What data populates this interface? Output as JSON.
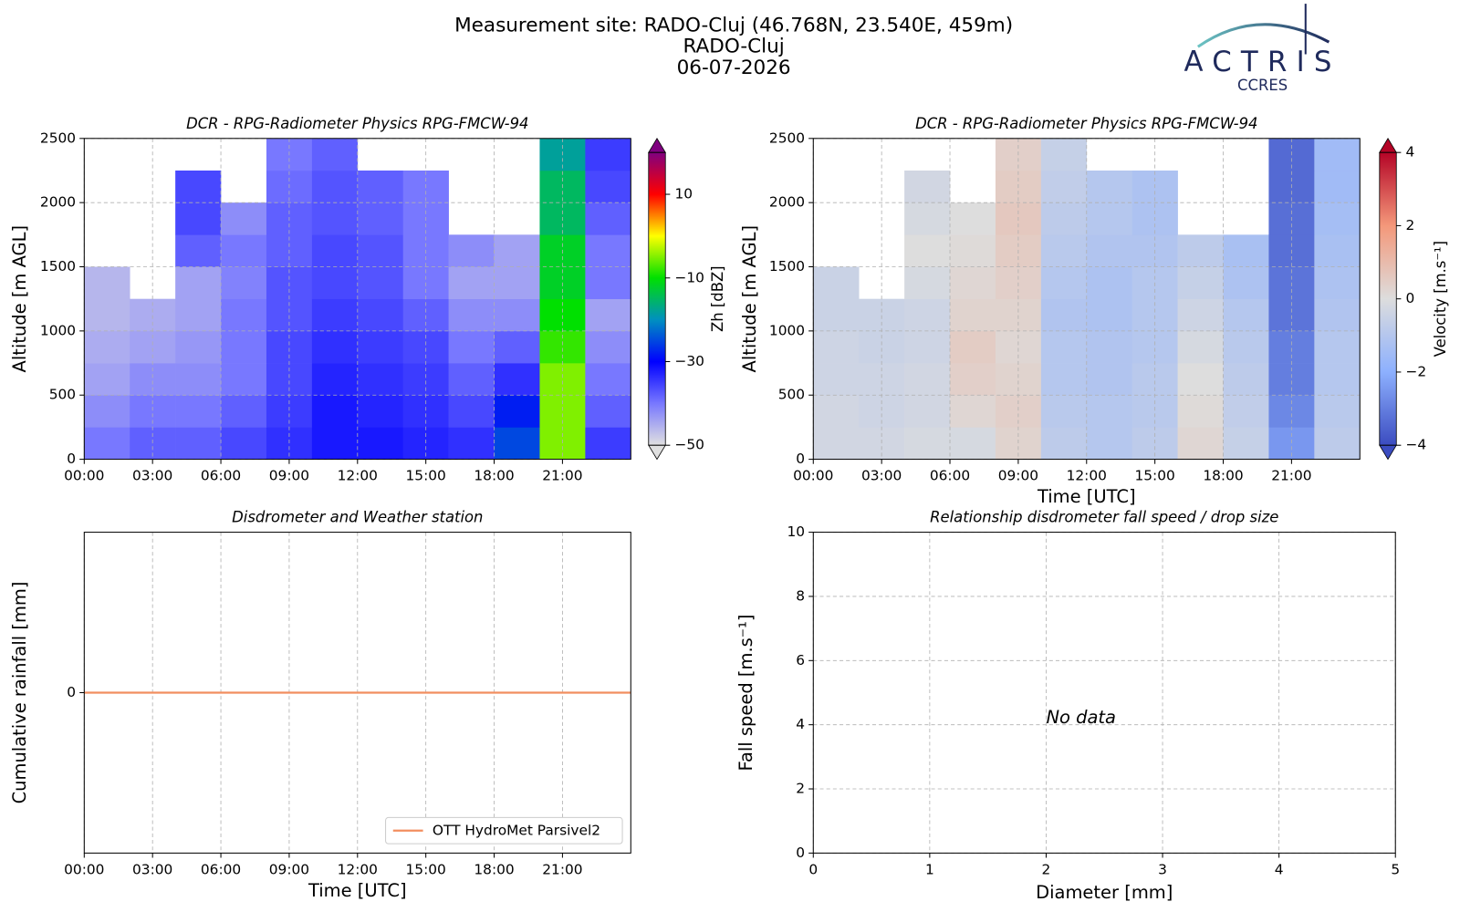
{
  "header": {
    "title_lines": [
      "Measurement site: RADO-Cluj (46.768N, 23.540E, 459m)",
      "RADO-Cluj",
      "06-07-2026"
    ],
    "logo": {
      "name": "ACTRIS",
      "subtitle": "CCRES"
    }
  },
  "chart_data": [
    {
      "type": "heatmap",
      "title": "DCR - RPG-Radiometer Physics RPG-FMCW-94",
      "ylabel": "Altitude [m AGL]",
      "x": [
        0,
        2,
        4,
        6,
        8,
        10,
        12,
        14,
        16,
        18,
        20,
        22,
        24
      ],
      "y": [
        0,
        250,
        500,
        750,
        1000,
        1250,
        1500,
        1750,
        2000,
        2250,
        2500
      ],
      "z": [
        [
          -40,
          -38,
          -38,
          -36,
          -34,
          -32,
          -32,
          -33,
          -34,
          -25,
          -5,
          -35
        ],
        [
          -42,
          -40,
          -40,
          -38,
          -35,
          -32,
          -33,
          -34,
          -36,
          -28,
          -5,
          -38
        ],
        [
          -44,
          -42,
          -42,
          -40,
          -36,
          -33,
          -34,
          -35,
          -38,
          -34,
          -5,
          -40
        ],
        [
          -45,
          -44,
          -43,
          -40,
          -36,
          -34,
          -35,
          -36,
          -40,
          -38,
          -8,
          -42
        ],
        [
          -46,
          -45,
          -44,
          -40,
          -37,
          -35,
          -36,
          -38,
          -42,
          -42,
          -10,
          -44
        ],
        [
          -46,
          null,
          -44,
          -41,
          -37,
          -36,
          -37,
          -40,
          -44,
          -44,
          -12,
          -40
        ],
        [
          null,
          null,
          -38,
          -40,
          -38,
          -36,
          -37,
          -40,
          -42,
          -44,
          -12,
          -40
        ],
        [
          null,
          null,
          -36,
          -42,
          -38,
          -37,
          -38,
          -40,
          null,
          null,
          -15,
          -38
        ],
        [
          null,
          null,
          -36,
          null,
          -39,
          -37,
          -38,
          -40,
          null,
          null,
          -15,
          -36
        ],
        [
          null,
          null,
          null,
          null,
          -40,
          -38,
          null,
          null,
          null,
          null,
          -18,
          -35
        ]
      ],
      "xlim": [
        0,
        24
      ],
      "xticks": [
        {
          "value": 0,
          "label": "00:00"
        },
        {
          "value": 3,
          "label": "03:00"
        },
        {
          "value": 6,
          "label": "06:00"
        },
        {
          "value": 9,
          "label": "09:00"
        },
        {
          "value": 12,
          "label": "12:00"
        },
        {
          "value": 15,
          "label": "15:00"
        },
        {
          "value": 18,
          "label": "18:00"
        },
        {
          "value": 21,
          "label": "21:00"
        }
      ],
      "ylim": [
        0,
        2500
      ],
      "yticks": [
        0,
        500,
        1000,
        1500,
        2000,
        2500
      ],
      "grid": true,
      "colorbar_label": "Zh [dBZ]",
      "clim": [
        -50,
        20
      ],
      "cticks": [
        {
          "value": -50,
          "label": "−50"
        },
        {
          "value": -30,
          "label": "−30"
        },
        {
          "value": -10,
          "label": "−10"
        },
        10
      ],
      "colors": [
        "#e0e0e0",
        "#7878ff",
        "#0000ff",
        "#0090c0",
        "#00e000",
        "#ffff00",
        "#ff0000",
        "#800080"
      ],
      "extend": "both"
    },
    {
      "type": "heatmap",
      "title": "DCR - RPG-Radiometer Physics RPG-FMCW-94",
      "ylabel": "Altitude [m AGL]",
      "xlabel": "Time [UTC]",
      "x": [
        0,
        2,
        4,
        6,
        8,
        10,
        12,
        14,
        16,
        18,
        20,
        22,
        24
      ],
      "y": [
        0,
        250,
        500,
        750,
        1000,
        1250,
        1500,
        1750,
        2000,
        2250,
        2500
      ],
      "z": [
        [
          -0.3,
          -0.3,
          -0.2,
          -0.2,
          0.3,
          -0.8,
          -1,
          -0.8,
          0.2,
          -0.6,
          -2.5,
          -0.8
        ],
        [
          -0.3,
          -0.4,
          -0.3,
          0.2,
          0.4,
          -0.9,
          -1,
          -0.9,
          0.1,
          -0.7,
          -2.8,
          -0.9
        ],
        [
          -0.4,
          -0.4,
          -0.3,
          0.4,
          0.3,
          -1,
          -1.1,
          -0.9,
          0,
          -0.8,
          -3,
          -1
        ],
        [
          -0.4,
          -0.5,
          -0.4,
          0.5,
          0.2,
          -1,
          -1.1,
          -1,
          -0.2,
          -0.9,
          -3,
          -1
        ],
        [
          -0.5,
          -0.5,
          -0.4,
          0.3,
          0.3,
          -1.1,
          -1.2,
          -1,
          -0.4,
          -1,
          -3.2,
          -1.1
        ],
        [
          -0.5,
          null,
          -0.2,
          0.2,
          0.4,
          -1,
          -1.2,
          -1,
          -0.6,
          -1.2,
          -3.2,
          -1.2
        ],
        [
          null,
          null,
          0,
          0.1,
          0.5,
          -0.9,
          -1.1,
          -1.1,
          -0.8,
          -1.3,
          -3.3,
          -1.3
        ],
        [
          null,
          null,
          -0.2,
          0,
          0.6,
          -0.8,
          -1,
          -1.2,
          null,
          null,
          -3.3,
          -1.4
        ],
        [
          null,
          null,
          -0.3,
          null,
          0.5,
          -0.7,
          -1,
          -1.2,
          null,
          null,
          -3.4,
          -1.5
        ],
        [
          null,
          null,
          null,
          null,
          0.4,
          -0.6,
          null,
          null,
          null,
          null,
          -3.4,
          -1.5
        ]
      ],
      "xlim": [
        0,
        24
      ],
      "xticks": [
        {
          "value": 0,
          "label": "00:00"
        },
        {
          "value": 3,
          "label": "03:00"
        },
        {
          "value": 6,
          "label": "06:00"
        },
        {
          "value": 9,
          "label": "09:00"
        },
        {
          "value": 12,
          "label": "12:00"
        },
        {
          "value": 15,
          "label": "15:00"
        },
        {
          "value": 18,
          "label": "18:00"
        },
        {
          "value": 21,
          "label": "21:00"
        }
      ],
      "ylim": [
        0,
        2500
      ],
      "yticks": [
        0,
        500,
        1000,
        1500,
        2000,
        2500
      ],
      "grid": true,
      "colorbar_label": "Velocity [m.s⁻¹]",
      "clim": [
        -4,
        4
      ],
      "cticks": [
        {
          "value": -4,
          "label": "−4"
        },
        {
          "value": -2,
          "label": "−2"
        },
        0,
        2,
        4
      ],
      "colors": [
        "#3b4cc0",
        "#8db0fe",
        "#dddddd",
        "#f4987a",
        "#b40426"
      ],
      "extend": "both"
    },
    {
      "type": "line",
      "title": "Disdrometer and Weather station",
      "ylabel": "Cumulative rainfall [mm]",
      "xlabel": "Time [UTC]",
      "x": [
        0,
        24
      ],
      "series": [
        {
          "name": "OTT HydroMet Parsivel2",
          "color": "#f28e5f",
          "values": [
            0,
            0
          ]
        }
      ],
      "xlim": [
        0,
        24
      ],
      "xticks": [
        {
          "value": 0,
          "label": "00:00"
        },
        {
          "value": 3,
          "label": "03:00"
        },
        {
          "value": 6,
          "label": "06:00"
        },
        {
          "value": 9,
          "label": "09:00"
        },
        {
          "value": 12,
          "label": "12:00"
        },
        {
          "value": 15,
          "label": "15:00"
        },
        {
          "value": 18,
          "label": "18:00"
        },
        {
          "value": 21,
          "label": "21:00"
        }
      ],
      "ylim": [
        -0.055,
        0.055
      ],
      "yticks": [
        0
      ],
      "grid": true,
      "legend": "lower right"
    },
    {
      "type": "scatter",
      "title": "Relationship disdrometer fall speed / drop size",
      "ylabel": "Fall speed [m.s⁻¹]",
      "xlabel": "Diameter [mm]",
      "xlim": [
        0,
        5
      ],
      "xticks": [
        0,
        1,
        2,
        3,
        4,
        5
      ],
      "ylim": [
        0,
        10
      ],
      "yticks": [
        0,
        2,
        4,
        6,
        8,
        10
      ],
      "grid": true,
      "annotation": "No data"
    }
  ]
}
